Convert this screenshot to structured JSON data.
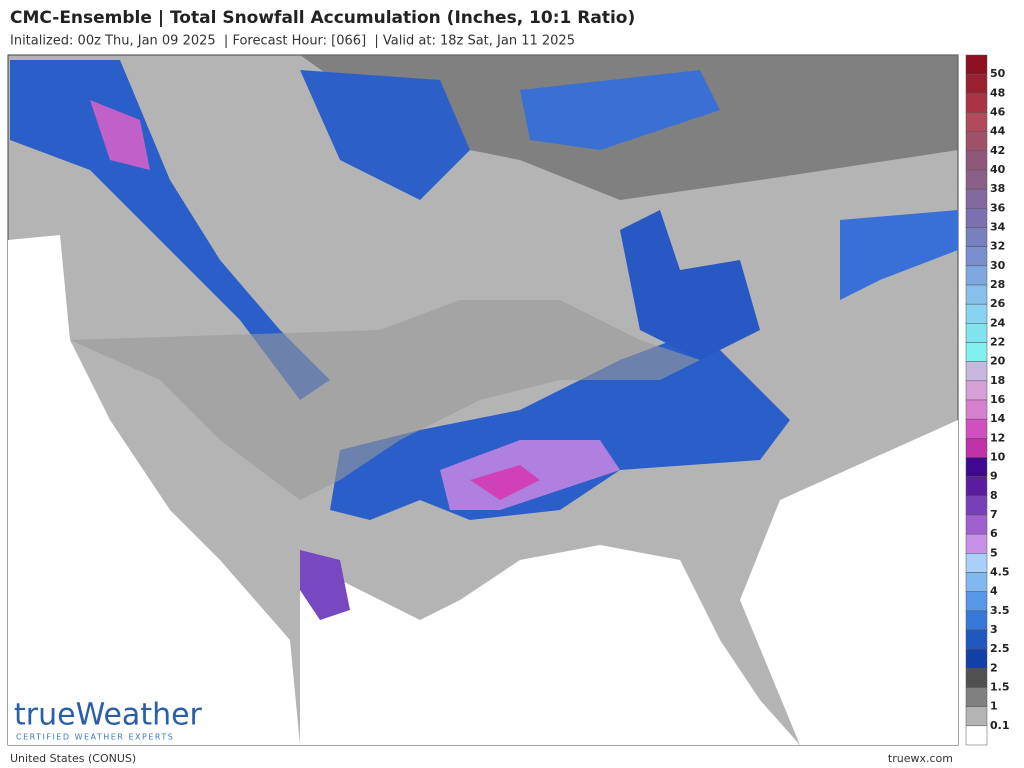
{
  "header": {
    "title": "CMC-Ensemble | Total Snowfall Accumulation (Inches, 10:1 Ratio)",
    "subtitle": "Initalized: 00z Thu, Jan 09 2025  | Forecast Hour: [066]  | Valid at: 18z Sat, Jan 11 2025"
  },
  "legend": {
    "labels": [
      "50",
      "48",
      "46",
      "44",
      "42",
      "40",
      "38",
      "36",
      "34",
      "32",
      "30",
      "28",
      "26",
      "24",
      "22",
      "20",
      "18",
      "16",
      "14",
      "12",
      "10",
      "9",
      "8",
      "7",
      "6",
      "5",
      "4.5",
      "4",
      "3.5",
      "3",
      "2.5",
      "2",
      "1.5",
      "1",
      "0.1"
    ],
    "colors": [
      "#8c1020",
      "#9a2030",
      "#a83444",
      "#b04a5c",
      "#a05068",
      "#905878",
      "#8a6088",
      "#8468a0",
      "#7c70b0",
      "#7880c0",
      "#7890d0",
      "#80a8e0",
      "#88c0ec",
      "#88d4f0",
      "#80e4f0",
      "#80f0f0",
      "#c8b8e0",
      "#d8a0d8",
      "#d880d0",
      "#d050c0",
      "#c030a8",
      "#400890",
      "#5c1ca0",
      "#7840b8",
      "#a060d0",
      "#c890e8",
      "#a8d0f8",
      "#80b8f0",
      "#5898e8",
      "#3878d8",
      "#2058c0",
      "#1040a8",
      "#505050",
      "#808080",
      "#b4b4b4",
      "#ffffff"
    ]
  },
  "logo": {
    "name": "trueWeather",
    "tagline": "CERTIFIED WEATHER EXPERTS"
  },
  "footer": {
    "region": "United States (CONUS)",
    "site": "truewx.com"
  }
}
